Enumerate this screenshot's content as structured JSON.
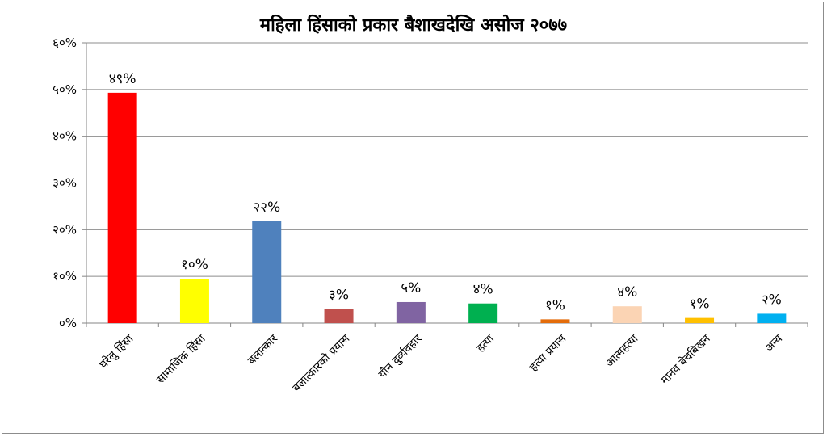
{
  "chart_data": {
    "type": "bar",
    "title": "महिला हिंसाको प्रकार बैशाखदेखि असोज २०७७",
    "xlabel": "",
    "ylabel": "",
    "ylim": [
      0,
      60
    ],
    "y_ticks": [
      0,
      10,
      20,
      30,
      40,
      50,
      60
    ],
    "y_tick_labels": [
      "०%",
      "१०%",
      "२०%",
      "३०%",
      "४०%",
      "५०%",
      "६०%"
    ],
    "grid": true,
    "legend": "none",
    "categories": [
      "घरेलु हिंसा",
      "सामाजिक हिंसा",
      "बलात्कार",
      "बलात्कारको प्रयास",
      "यौन दुर्व्यवहार",
      "हत्या",
      "हत्या प्रयास",
      "आत्महत्या",
      "मानव बेचबिखन",
      "अन्य"
    ],
    "values": [
      49.3,
      9.5,
      21.8,
      3,
      4.5,
      4.2,
      0.8,
      3.6,
      1.1,
      2
    ],
    "data_labels": [
      "४९%",
      "१०%",
      "२२%",
      "३%",
      "५%",
      "४%",
      "१%",
      "४%",
      "१%",
      "२%"
    ],
    "colors": [
      "#FF0000",
      "#FFFF00",
      "#4F81BD",
      "#C0504D",
      "#8064A2",
      "#00B050",
      "#E46C0A",
      "#FBD4B4",
      "#FFC000",
      "#00B0F0"
    ]
  }
}
